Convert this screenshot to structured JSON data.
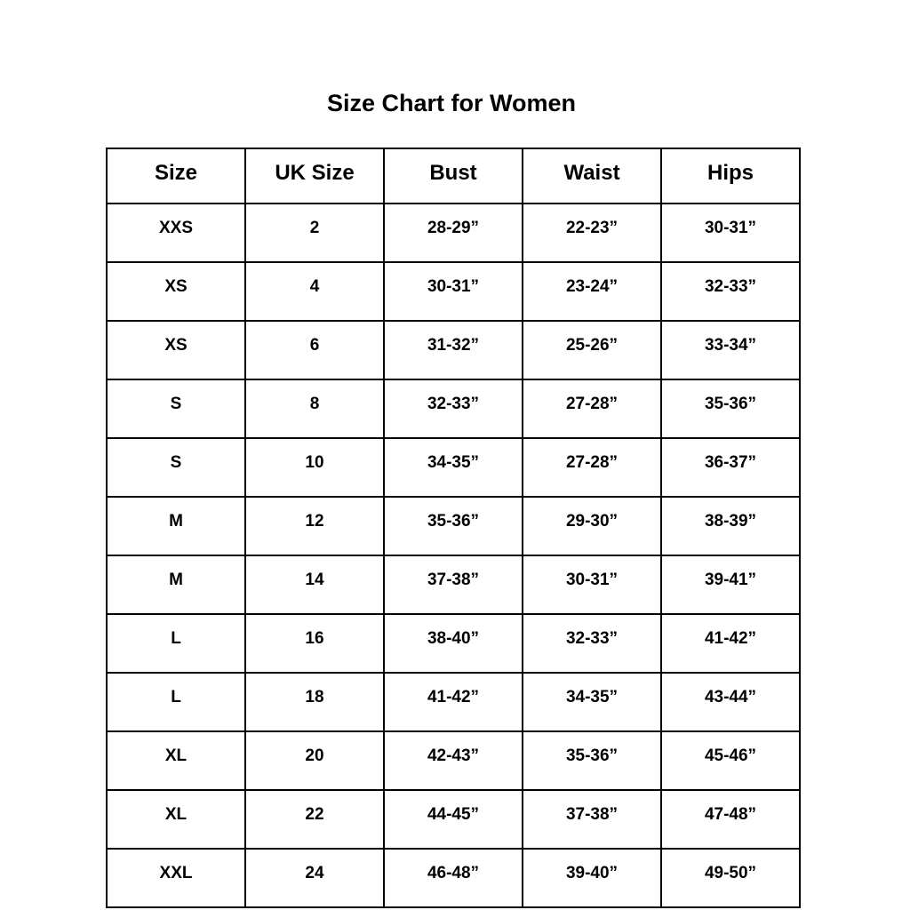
{
  "title": "Size Chart for Women",
  "table": {
    "headers": [
      "Size",
      "UK Size",
      "Bust",
      "Waist",
      "Hips"
    ],
    "rows": [
      [
        "XXS",
        "2",
        "28-29”",
        "22-23”",
        "30-31”"
      ],
      [
        "XS",
        "4",
        "30-31”",
        "23-24”",
        "32-33”"
      ],
      [
        "XS",
        "6",
        "31-32”",
        "25-26”",
        "33-34”"
      ],
      [
        "S",
        "8",
        "32-33”",
        "27-28”",
        "35-36”"
      ],
      [
        "S",
        "10",
        "34-35”",
        "27-28”",
        "36-37”"
      ],
      [
        "M",
        "12",
        "35-36”",
        "29-30”",
        "38-39”"
      ],
      [
        "M",
        "14",
        "37-38”",
        "30-31”",
        "39-41”"
      ],
      [
        "L",
        "16",
        "38-40”",
        "32-33”",
        "41-42”"
      ],
      [
        "L",
        "18",
        "41-42”",
        "34-35”",
        "43-44”"
      ],
      [
        "XL",
        "20",
        "42-43”",
        "35-36”",
        "45-46”"
      ],
      [
        "XL",
        "22",
        "44-45”",
        "37-38”",
        "47-48”"
      ],
      [
        "XXL",
        "24",
        "46-48”",
        "39-40”",
        "49-50”"
      ]
    ]
  }
}
